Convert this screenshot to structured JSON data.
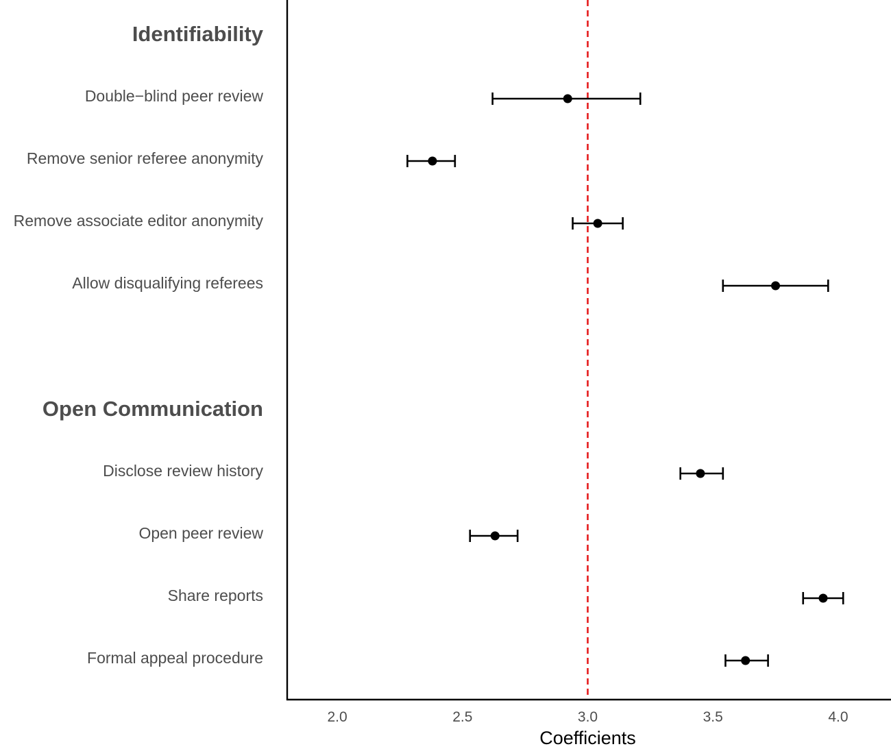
{
  "chart_data": {
    "type": "scatter",
    "subtype": "coefficient-plot-with-error-bars",
    "xlabel": "Coefficients",
    "xlim": [
      1.8,
      4.2
    ],
    "xticks": [
      "2.0",
      "2.5",
      "3.0",
      "3.5",
      "4.0"
    ],
    "xtick_values": [
      2.0,
      2.5,
      3.0,
      3.5,
      4.0
    ],
    "reference_line": {
      "x": 3.0,
      "style": "dashed",
      "color": "#e41a1c"
    },
    "grid": false,
    "groups": [
      {
        "name": "Identifiability",
        "items": [
          {
            "label": "Double−blind peer review",
            "estimate": 2.92,
            "lower": 2.62,
            "upper": 3.21
          },
          {
            "label": "Remove senior referee anonymity",
            "estimate": 2.38,
            "lower": 2.28,
            "upper": 2.47
          },
          {
            "label": "Remove associate editor anonymity",
            "estimate": 3.04,
            "lower": 2.94,
            "upper": 3.14
          },
          {
            "label": "Allow disqualifying referees",
            "estimate": 3.75,
            "lower": 3.54,
            "upper": 3.96
          }
        ]
      },
      {
        "name": "Open Communication",
        "items": [
          {
            "label": "Disclose review history",
            "estimate": 3.45,
            "lower": 3.37,
            "upper": 3.54
          },
          {
            "label": "Open peer review",
            "estimate": 2.63,
            "lower": 2.53,
            "upper": 2.72
          },
          {
            "label": "Share reports",
            "estimate": 3.94,
            "lower": 3.86,
            "upper": 4.02
          },
          {
            "label": "Formal appeal procedure",
            "estimate": 3.63,
            "lower": 3.55,
            "upper": 3.72
          }
        ]
      }
    ],
    "colors": {
      "point": "#000000",
      "error_bar": "#000000",
      "axis": "#000000",
      "label_text": "#4d4d4d"
    }
  }
}
